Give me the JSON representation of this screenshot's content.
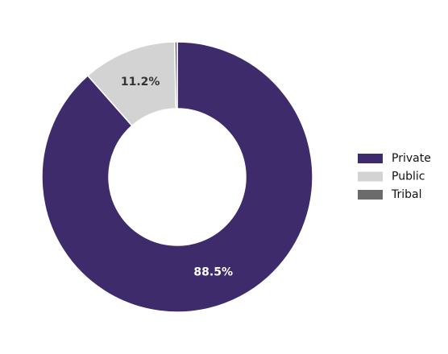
{
  "chart_data": {
    "type": "donut",
    "categories": [
      "Private",
      "Public",
      "Tribal"
    ],
    "values": [
      88.5,
      11.2,
      0.3
    ],
    "value_labels": [
      "88.5%",
      "11.2%",
      null
    ],
    "colors": [
      "#3d2b6b",
      "#d3d3d3",
      "#6b6b6b"
    ],
    "legend": "right"
  }
}
